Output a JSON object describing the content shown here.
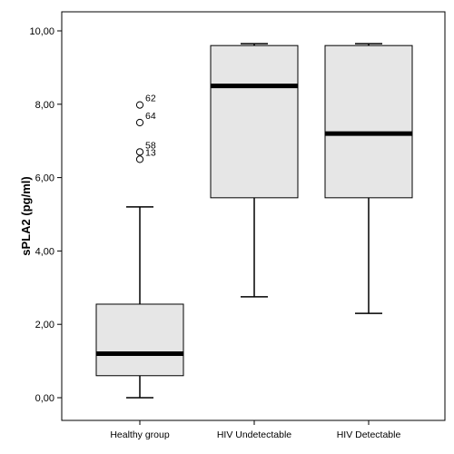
{
  "chart_data": {
    "type": "boxplot",
    "ylabel": "sPLA2 (pg/ml)",
    "ylim": [
      0,
      10
    ],
    "yticks": [
      0,
      2,
      4,
      6,
      8,
      10
    ],
    "ytick_labels": [
      "0,00",
      "2,00",
      "4,00",
      "6,00",
      "8,00",
      "10,00"
    ],
    "categories": [
      "Healthy group",
      "HIV Undetectable",
      "HIV Detectable"
    ],
    "boxes": [
      {
        "category": "Healthy group",
        "whisker_low": 0.0,
        "q1": 0.6,
        "median": 1.2,
        "q3": 2.55,
        "whisker_high": 5.2
      },
      {
        "category": "HIV Undetectable",
        "whisker_low": 2.75,
        "q1": 5.45,
        "median": 8.5,
        "q3": 9.6,
        "whisker_high": 9.65
      },
      {
        "category": "HIV Detectable",
        "whisker_low": 2.3,
        "q1": 5.45,
        "median": 7.2,
        "q3": 9.6,
        "whisker_high": 9.65
      }
    ],
    "outliers": [
      {
        "category": "Healthy group",
        "value": 7.98,
        "label": "62"
      },
      {
        "category": "Healthy group",
        "value": 7.5,
        "label": "64"
      },
      {
        "category": "Healthy group",
        "value": 6.7,
        "label": "58"
      },
      {
        "category": "Healthy group",
        "value": 6.5,
        "label": "13"
      }
    ],
    "grid": false,
    "legend": "none",
    "colors": {
      "box_fill": "#e6e6e6",
      "stroke": "#000000",
      "median": "#000000"
    }
  }
}
